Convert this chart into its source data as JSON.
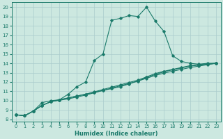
{
  "xlabel": "Humidex (Indice chaleur)",
  "bg_color": "#cce8e0",
  "grid_color": "#aacccc",
  "line_color": "#1a7a6a",
  "xlim": [
    -0.5,
    23.5
  ],
  "ylim": [
    7.8,
    20.5
  ],
  "xticks": [
    0,
    1,
    2,
    3,
    4,
    5,
    6,
    7,
    8,
    9,
    10,
    11,
    12,
    13,
    14,
    15,
    16,
    17,
    18,
    19,
    20,
    21,
    22,
    23
  ],
  "yticks": [
    8,
    9,
    10,
    11,
    12,
    13,
    14,
    15,
    16,
    17,
    18,
    19,
    20
  ],
  "line1_x": [
    0,
    1,
    2,
    3,
    4,
    5,
    6,
    7,
    8,
    9,
    10,
    11,
    12,
    13,
    14,
    15,
    16,
    17,
    18,
    19,
    20,
    21,
    22,
    23
  ],
  "line1_y": [
    8.5,
    8.4,
    8.9,
    9.8,
    10.0,
    10.1,
    10.7,
    11.5,
    12.0,
    14.3,
    15.0,
    18.6,
    18.8,
    19.1,
    19.0,
    20.0,
    18.5,
    17.4,
    14.8,
    14.2,
    14.0,
    13.9,
    14.0,
    14.0
  ],
  "line2_x": [
    0,
    1,
    2,
    3,
    4,
    5,
    6,
    7,
    8,
    9,
    10,
    11,
    12,
    13,
    14,
    15,
    16,
    17,
    18,
    19,
    20,
    21,
    22,
    23
  ],
  "line2_y": [
    8.5,
    8.4,
    8.9,
    9.5,
    9.9,
    10.1,
    10.3,
    10.5,
    10.7,
    10.9,
    11.1,
    11.3,
    11.5,
    11.8,
    12.1,
    12.5,
    12.8,
    13.1,
    13.3,
    13.5,
    13.7,
    13.8,
    13.9,
    14.0
  ],
  "line3_x": [
    0,
    1,
    2,
    3,
    4,
    5,
    6,
    7,
    8,
    9,
    10,
    11,
    12,
    13,
    14,
    15,
    16,
    17,
    18,
    19,
    20,
    21,
    22,
    23
  ],
  "line3_y": [
    8.5,
    8.4,
    8.9,
    9.5,
    9.9,
    10.1,
    10.3,
    10.5,
    10.7,
    10.95,
    11.2,
    11.45,
    11.7,
    11.95,
    12.2,
    12.55,
    12.9,
    13.15,
    13.35,
    13.55,
    13.75,
    13.85,
    13.95,
    14.0
  ],
  "line4_x": [
    0,
    1,
    2,
    3,
    4,
    5,
    6,
    7,
    8,
    9,
    10,
    11,
    12,
    13,
    14,
    15,
    16,
    17,
    18,
    19,
    20,
    21,
    22,
    23
  ],
  "line4_y": [
    8.5,
    8.4,
    8.9,
    9.5,
    9.9,
    10.05,
    10.2,
    10.4,
    10.6,
    10.85,
    11.1,
    11.35,
    11.6,
    11.85,
    12.1,
    12.4,
    12.7,
    12.95,
    13.15,
    13.35,
    13.55,
    13.7,
    13.85,
    14.0
  ]
}
